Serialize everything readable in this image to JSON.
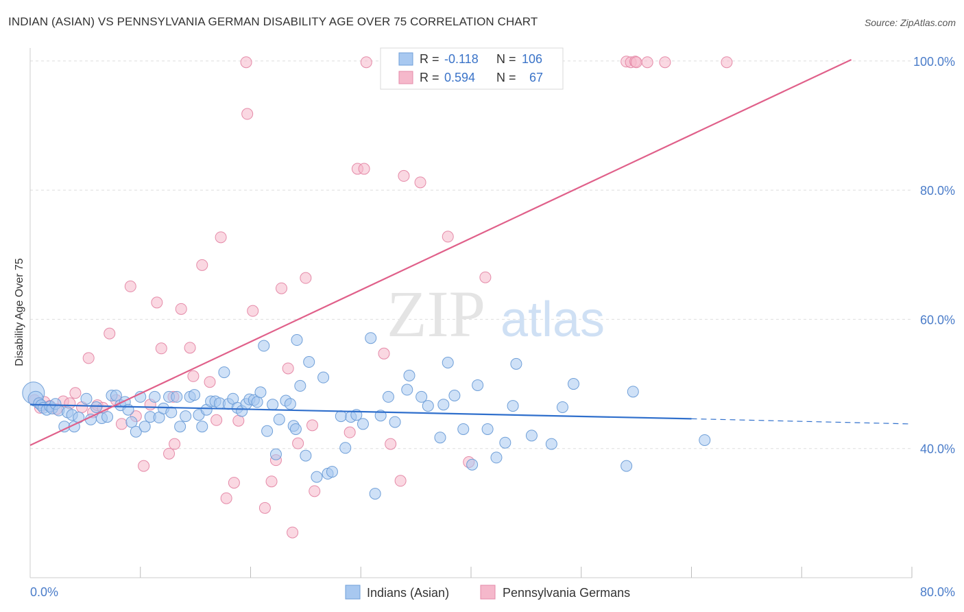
{
  "title": "INDIAN (ASIAN) VS PENNSYLVANIA GERMAN DISABILITY AGE OVER 75 CORRELATION CHART",
  "source": "Source: ZipAtlas.com",
  "watermark": {
    "zip": "ZIP",
    "atlas": "atlas"
  },
  "colors": {
    "blue_fill": "#a8c8f0",
    "blue_stroke": "#6f9fd8",
    "blue_line": "#2f6fcc",
    "pink_fill": "#f5b8cb",
    "pink_stroke": "#e58aa8",
    "pink_line": "#e0608a",
    "tick_text": "#4a7cc9",
    "grid": "#dddddd"
  },
  "legend": {
    "rows": [
      {
        "r_label": "R =",
        "r_value": "-0.118",
        "n_label": "N =",
        "n_value": "106"
      },
      {
        "r_label": "R =",
        "r_value": "0.594",
        "n_label": "N =",
        "n_value": "67"
      }
    ]
  },
  "bottom_legend": [
    "Indians (Asian)",
    "Pennsylvania Germans"
  ],
  "chart_data": {
    "type": "scatter",
    "title": "INDIAN (ASIAN) VS PENNSYLVANIA GERMAN DISABILITY AGE OVER 75 CORRELATION CHART",
    "xlabel": "",
    "ylabel": "Disability Age Over 75",
    "xlim": [
      0,
      80
    ],
    "ylim": [
      20,
      102
    ],
    "x_tick_labels": [
      "0.0%",
      "80.0%"
    ],
    "y_ticks": [
      40,
      60,
      80,
      100
    ],
    "y_tick_labels": [
      "40.0%",
      "60.0%",
      "80.0%",
      "100.0%"
    ],
    "grid": true,
    "legend_position": "top-center",
    "series": [
      {
        "name": "Indians (Asian)",
        "color": "#a8c8f0",
        "trend": {
          "x": [
            0,
            60
          ],
          "y": [
            46.8,
            44.6
          ],
          "dashed_to_x": 80,
          "dashed_y_end": 43.8
        },
        "points": [
          [
            0.3,
            48.6
          ],
          [
            0.5,
            47.7
          ],
          [
            0.8,
            47.0
          ],
          [
            1.0,
            46.7
          ],
          [
            1.2,
            46.3
          ],
          [
            1.5,
            46.0
          ],
          [
            1.8,
            46.5
          ],
          [
            2.0,
            46.2
          ],
          [
            2.3,
            46.9
          ],
          [
            2.6,
            45.9
          ],
          [
            3.1,
            43.4
          ],
          [
            3.4,
            45.6
          ],
          [
            3.8,
            45.2
          ],
          [
            4.0,
            43.4
          ],
          [
            4.4,
            44.8
          ],
          [
            5.1,
            47.7
          ],
          [
            5.5,
            44.5
          ],
          [
            6.0,
            46.4
          ],
          [
            6.5,
            44.7
          ],
          [
            7.0,
            44.9
          ],
          [
            7.4,
            48.2
          ],
          [
            7.8,
            48.2
          ],
          [
            8.2,
            46.7
          ],
          [
            8.6,
            47.2
          ],
          [
            8.9,
            46.0
          ],
          [
            9.2,
            44.1
          ],
          [
            9.6,
            42.6
          ],
          [
            10.0,
            48.0
          ],
          [
            10.4,
            43.4
          ],
          [
            10.9,
            44.9
          ],
          [
            11.3,
            48.0
          ],
          [
            11.7,
            44.8
          ],
          [
            12.1,
            46.2
          ],
          [
            12.6,
            48.0
          ],
          [
            12.8,
            45.6
          ],
          [
            13.3,
            48.0
          ],
          [
            13.6,
            43.4
          ],
          [
            14.1,
            45.0
          ],
          [
            14.5,
            48.0
          ],
          [
            14.9,
            48.3
          ],
          [
            15.3,
            45.2
          ],
          [
            15.6,
            43.4
          ],
          [
            16.0,
            46.0
          ],
          [
            16.4,
            47.3
          ],
          [
            16.8,
            47.3
          ],
          [
            17.2,
            47.0
          ],
          [
            17.6,
            51.8
          ],
          [
            18.0,
            46.9
          ],
          [
            18.4,
            47.7
          ],
          [
            18.8,
            46.3
          ],
          [
            19.2,
            45.8
          ],
          [
            19.6,
            46.9
          ],
          [
            19.9,
            47.6
          ],
          [
            20.3,
            47.5
          ],
          [
            20.6,
            47.2
          ],
          [
            20.9,
            48.7
          ],
          [
            21.5,
            42.7
          ],
          [
            22.0,
            46.8
          ],
          [
            22.3,
            39.1
          ],
          [
            22.6,
            44.5
          ],
          [
            23.2,
            47.4
          ],
          [
            23.6,
            46.9
          ],
          [
            23.9,
            43.5
          ],
          [
            24.1,
            43.0
          ],
          [
            24.5,
            49.7
          ],
          [
            25.0,
            38.9
          ],
          [
            25.3,
            53.4
          ],
          [
            26.0,
            35.6
          ],
          [
            26.6,
            51.0
          ],
          [
            27.0,
            36.1
          ],
          [
            27.4,
            36.4
          ],
          [
            28.2,
            45.0
          ],
          [
            28.6,
            40.1
          ],
          [
            29.1,
            44.9
          ],
          [
            29.6,
            45.2
          ],
          [
            30.2,
            43.8
          ],
          [
            30.9,
            57.1
          ],
          [
            31.3,
            33.0
          ],
          [
            31.8,
            45.1
          ],
          [
            32.5,
            48.0
          ],
          [
            33.1,
            44.1
          ],
          [
            34.2,
            49.1
          ],
          [
            34.4,
            51.3
          ],
          [
            35.5,
            48.0
          ],
          [
            36.1,
            46.6
          ],
          [
            37.2,
            41.7
          ],
          [
            37.5,
            46.8
          ],
          [
            37.9,
            53.3
          ],
          [
            38.5,
            48.2
          ],
          [
            39.3,
            43.0
          ],
          [
            40.1,
            37.5
          ],
          [
            40.6,
            49.8
          ],
          [
            41.5,
            43.0
          ],
          [
            42.3,
            38.6
          ],
          [
            43.1,
            40.9
          ],
          [
            43.8,
            46.6
          ],
          [
            44.1,
            53.1
          ],
          [
            45.5,
            42.0
          ],
          [
            47.3,
            40.7
          ],
          [
            48.3,
            46.4
          ],
          [
            49.3,
            50.0
          ],
          [
            54.1,
            37.3
          ],
          [
            54.7,
            48.8
          ],
          [
            61.2,
            41.3
          ],
          [
            24.2,
            56.8
          ],
          [
            21.2,
            55.9
          ]
        ]
      },
      {
        "name": "Pennsylvania Germans",
        "color": "#f5b8cb",
        "trend": {
          "x": [
            0,
            74.5
          ],
          "y": [
            40.5,
            100.2
          ]
        },
        "points": [
          [
            0.4,
            47.5
          ],
          [
            0.9,
            46.3
          ],
          [
            1.3,
            47.2
          ],
          [
            1.8,
            46.6
          ],
          [
            2.4,
            46.1
          ],
          [
            3.0,
            47.3
          ],
          [
            3.6,
            47.0
          ],
          [
            4.1,
            48.6
          ],
          [
            4.7,
            46.4
          ],
          [
            5.3,
            54.0
          ],
          [
            5.7,
            45.6
          ],
          [
            6.1,
            46.7
          ],
          [
            6.6,
            46.3
          ],
          [
            7.2,
            57.8
          ],
          [
            7.8,
            47.5
          ],
          [
            8.3,
            43.8
          ],
          [
            9.1,
            65.1
          ],
          [
            9.6,
            45.0
          ],
          [
            10.3,
            37.3
          ],
          [
            10.9,
            46.8
          ],
          [
            11.5,
            62.6
          ],
          [
            11.9,
            55.5
          ],
          [
            12.6,
            39.2
          ],
          [
            13.1,
            40.7
          ],
          [
            13.7,
            61.6
          ],
          [
            14.5,
            55.6
          ],
          [
            14.8,
            51.2
          ],
          [
            15.6,
            68.4
          ],
          [
            16.3,
            50.3
          ],
          [
            16.9,
            44.4
          ],
          [
            17.3,
            72.7
          ],
          [
            17.8,
            32.3
          ],
          [
            18.5,
            34.7
          ],
          [
            18.9,
            44.3
          ],
          [
            19.6,
            99.8
          ],
          [
            19.7,
            91.8
          ],
          [
            20.2,
            61.3
          ],
          [
            21.3,
            30.8
          ],
          [
            21.9,
            34.9
          ],
          [
            22.3,
            38.2
          ],
          [
            22.8,
            64.8
          ],
          [
            23.4,
            52.4
          ],
          [
            23.8,
            27.0
          ],
          [
            24.3,
            40.8
          ],
          [
            25.0,
            66.4
          ],
          [
            25.6,
            43.6
          ],
          [
            25.8,
            33.4
          ],
          [
            29.0,
            42.5
          ],
          [
            29.7,
            83.3
          ],
          [
            30.3,
            83.3
          ],
          [
            30.5,
            99.8
          ],
          [
            32.1,
            54.7
          ],
          [
            32.7,
            40.7
          ],
          [
            33.6,
            35.0
          ],
          [
            33.9,
            82.2
          ],
          [
            35.4,
            81.2
          ],
          [
            37.9,
            72.8
          ],
          [
            39.8,
            37.9
          ],
          [
            41.3,
            66.5
          ],
          [
            54.1,
            99.9
          ],
          [
            54.5,
            99.8
          ],
          [
            54.9,
            99.9
          ],
          [
            55.0,
            99.8
          ],
          [
            56.0,
            99.8
          ],
          [
            57.6,
            99.8
          ],
          [
            63.2,
            99.8
          ],
          [
            13.0,
            48.0
          ]
        ]
      }
    ]
  }
}
